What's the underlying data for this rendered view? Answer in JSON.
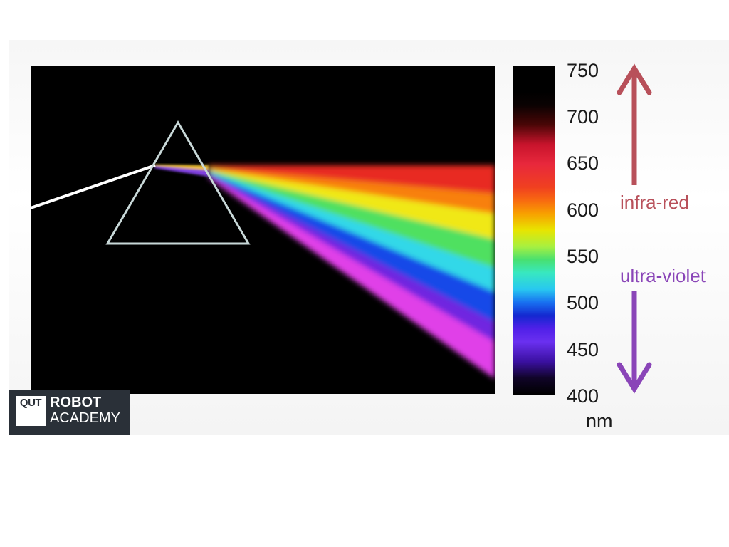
{
  "scale": {
    "ticks": [
      "750",
      "700",
      "650",
      "600",
      "550",
      "500",
      "450",
      "400"
    ],
    "unit": "nm"
  },
  "labels": {
    "infrared": "infra-red",
    "ultraviolet": "ultra-violet"
  },
  "logo": {
    "mark": "QUT",
    "line1": "ROBOT",
    "line2": "ACADEMY"
  },
  "colors": {
    "infrared_arrow": "#b8505a",
    "ultraviolet_arrow": "#8a45b8",
    "panel_background": "#000000"
  }
}
